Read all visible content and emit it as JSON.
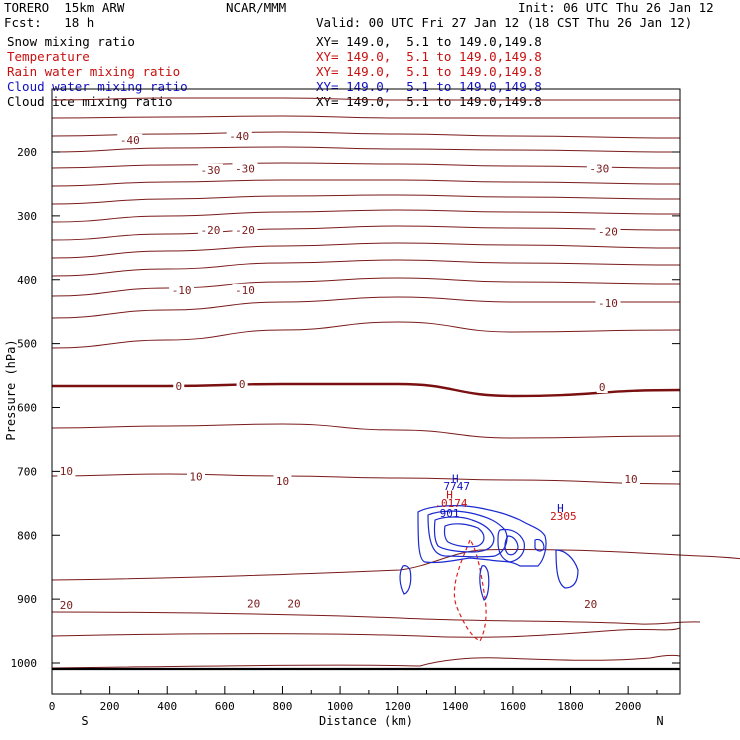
{
  "header": {
    "model": "TORERO  15km ARW",
    "org": "NCAR/MMM",
    "init": "Init: 06 UTC Thu 26 Jan 12",
    "fcst": "Fcst:   18 h",
    "valid": "Valid: 00 UTC Fri 27 Jan 12 (18 CST Thu 26 Jan 12)"
  },
  "fields": [
    {
      "label": "Snow mixing ratio",
      "xy": "XY= 149.0,  5.1 to 149.0,149.8",
      "color": "#000000"
    },
    {
      "label": "Temperature",
      "xy": "XY= 149.0,  5.1 to 149.0,149.8",
      "color": "#c81010"
    },
    {
      "label": "Rain water mixing ratio",
      "xy": "XY= 149.0,  5.1 to 149.0,149.8",
      "color": "#c81010"
    },
    {
      "label": "Cloud water mixing ratio",
      "xy": "XY= 149.0,  5.1 to 149.0,149.8",
      "color": "#1010c0"
    },
    {
      "label": "Cloud ice mixing ratio",
      "xy": "XY= 149.0,  5.1 to 149.0,149.8",
      "color": "#000000"
    }
  ],
  "chart_data": {
    "type": "contour",
    "xlabel": "Distance (km)",
    "ylabel": "Pressure (hPa)",
    "xlim": [
      0,
      2180
    ],
    "ylim_pressure": [
      100,
      1050
    ],
    "x_ticks": [
      0,
      200,
      400,
      600,
      800,
      1000,
      1200,
      1400,
      1600,
      1800,
      2000
    ],
    "y_ticks": [
      200,
      300,
      400,
      500,
      600,
      700,
      800,
      900,
      1000
    ],
    "left_end_label": "S",
    "right_end_label": "N",
    "temperature_contour_labels": [
      {
        "text": "-40",
        "x": 270,
        "p": 278
      },
      {
        "text": "-40",
        "x": 650,
        "p": 272
      },
      {
        "text": "-30",
        "x": 550,
        "p": 328
      },
      {
        "text": "-30",
        "x": 670,
        "p": 326
      },
      {
        "text": "-30",
        "x": 1900,
        "p": 326
      },
      {
        "text": "-20",
        "x": 550,
        "p": 428
      },
      {
        "text": "-20",
        "x": 670,
        "p": 428
      },
      {
        "text": "-20",
        "x": 1930,
        "p": 431
      },
      {
        "text": "-10",
        "x": 450,
        "p": 528
      },
      {
        "text": "-10",
        "x": 670,
        "p": 528
      },
      {
        "text": "-10",
        "x": 1930,
        "p": 550
      },
      {
        "text": "0",
        "x": 440,
        "p": 688
      },
      {
        "text": "0",
        "x": 660,
        "p": 685
      },
      {
        "text": "0",
        "x": 1910,
        "p": 690
      },
      {
        "text": "10",
        "x": 50,
        "p": 830
      },
      {
        "text": "10",
        "x": 500,
        "p": 839
      },
      {
        "text": "10",
        "x": 800,
        "p": 847
      },
      {
        "text": "10",
        "x": 2010,
        "p": 843
      },
      {
        "text": "20",
        "x": 50,
        "p": 1053
      },
      {
        "text": "20",
        "x": 700,
        "p": 1051
      },
      {
        "text": "20",
        "x": 840,
        "p": 1051
      },
      {
        "text": "20",
        "x": 1870,
        "p": 1052
      }
    ],
    "annotations": [
      {
        "text": "H",
        "x": 1400,
        "p": 904,
        "color": "#1010c0"
      },
      {
        "text": "7747",
        "x": 1405,
        "p": 917,
        "color": "#1010c0"
      },
      {
        "text": "H",
        "x": 1380,
        "p": 931,
        "color": "#c81010"
      },
      {
        "text": ".0174",
        "x": 1385,
        "p": 945,
        "color": "#c81010"
      },
      {
        "text": "901",
        "x": 1380,
        "p": 962,
        "color": "#1010c0"
      },
      {
        "text": "H",
        "x": 1765,
        "p": 953,
        "color": "#1010c0"
      },
      {
        "text": "2305",
        "x": 1775,
        "p": 967,
        "color": "#c81010"
      }
    ]
  }
}
